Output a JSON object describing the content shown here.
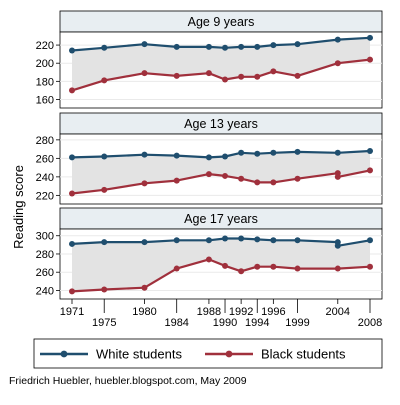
{
  "chart_data": {
    "type": "line",
    "ylabel": "Reading score",
    "x_ticks": [
      1971,
      1975,
      1980,
      1984,
      1988,
      1990,
      1992,
      1994,
      1996,
      1999,
      2004,
      2008
    ],
    "x_range": [
      1971,
      2008
    ],
    "shaded_gap_between_series": true,
    "grid": "horizontal",
    "legend_position": "bottom",
    "series_styles": [
      {
        "name": "White students",
        "color": "#1f4e6e"
      },
      {
        "name": "Black students",
        "color": "#a0303c"
      }
    ],
    "panels": [
      {
        "title": "Age 9 years",
        "ylim": [
          155,
          230
        ],
        "y_ticks": [
          160,
          180,
          200,
          220
        ],
        "series": [
          {
            "name": "White students",
            "x": [
              1971,
              1975,
              1980,
              1984,
              1988,
              1990,
              1992,
              1994,
              1996,
              1999,
              2004,
              2008
            ],
            "values": [
              214,
              217,
              221,
              218,
              218,
              217,
              218,
              218,
              220,
              221,
              226,
              228
            ]
          },
          {
            "name": "Black students",
            "x": [
              1971,
              1975,
              1980,
              1984,
              1988,
              1990,
              1992,
              1994,
              1996,
              1999,
              2004,
              2008
            ],
            "values": [
              170,
              181,
              189,
              186,
              189,
              182,
              185,
              185,
              191,
              186,
              200,
              204
            ]
          }
        ]
      },
      {
        "title": "Age 13 years",
        "ylim": [
          215,
          282
        ],
        "y_ticks": [
          220,
          240,
          260,
          280
        ],
        "series": [
          {
            "name": "White students",
            "x": [
              1971,
              1975,
              1980,
              1984,
              1988,
              1990,
              1992,
              1994,
              1996,
              1999,
              2004,
              2008
            ],
            "values": [
              261,
              262,
              264,
              263,
              261,
              262,
              266,
              265,
              266,
              267,
              266,
              268
            ]
          },
          {
            "name": "Black students",
            "x": [
              1971,
              1975,
              1980,
              1984,
              1988,
              1990,
              1992,
              1994,
              1996,
              1999,
              2004,
              2004,
              2008
            ],
            "values": [
              222,
              226,
              233,
              236,
              243,
              241,
              238,
              234,
              234,
              238,
              244,
              240,
              247
            ]
          }
        ]
      },
      {
        "title": "Age 17 years",
        "ylim": [
          235,
          303
        ],
        "y_ticks": [
          240,
          260,
          280,
          300
        ],
        "series": [
          {
            "name": "White students",
            "x": [
              1971,
              1975,
              1980,
              1984,
              1988,
              1990,
              1992,
              1994,
              1996,
              1999,
              2004,
              2004,
              2008
            ],
            "values": [
              291,
              293,
              293,
              295,
              295,
              297,
              297,
              296,
              295,
              295,
              293,
              289,
              295
            ]
          },
          {
            "name": "Black students",
            "x": [
              1971,
              1975,
              1980,
              1984,
              1988,
              1990,
              1992,
              1994,
              1996,
              1999,
              2004,
              2008
            ],
            "values": [
              239,
              241,
              243,
              264,
              274,
              267,
              261,
              266,
              266,
              264,
              264,
              266
            ]
          }
        ]
      }
    ]
  },
  "footer": {
    "credit": "Friedrich Huebler, huebler.blogspot.com, May 2009"
  }
}
